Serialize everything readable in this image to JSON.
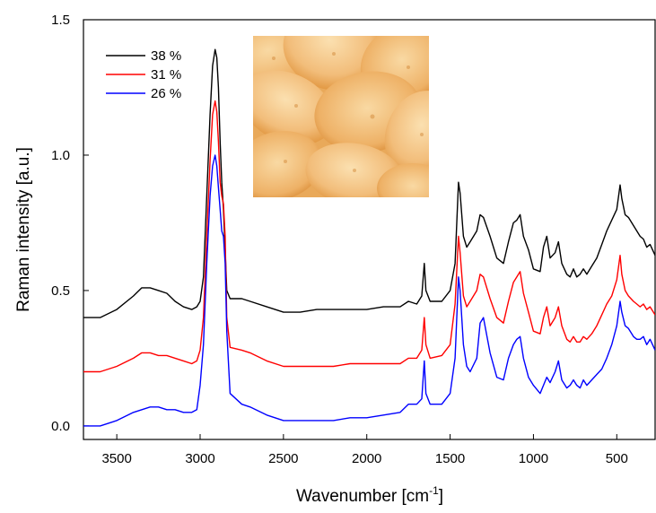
{
  "chart_data": {
    "type": "line",
    "xlabel": "Wavenumber [cm",
    "xlabel_superscript": "-1",
    "xlabel_suffix": "]",
    "ylabel": "Raman intensity [a.u.]",
    "xlim": [
      3700,
      270
    ],
    "x_reversed": true,
    "ylim": [
      -0.05,
      1.5
    ],
    "xticks": [
      3500,
      3000,
      2500,
      2000,
      1500,
      1000,
      500
    ],
    "xtick_labels": [
      "3500",
      "3000",
      "2500",
      "2000",
      "1500",
      "1000",
      "500"
    ],
    "yticks": [
      0.0,
      0.5,
      1.0,
      1.5
    ],
    "ytick_labels": [
      "0.0",
      "0.5",
      "1.0",
      "1.5"
    ],
    "grid": false,
    "legend_position": "top-left",
    "inset_image": "potato-chips-photo",
    "series": [
      {
        "name": "38 %",
        "color": "#000000",
        "points": [
          [
            3700,
            0.4
          ],
          [
            3600,
            0.4
          ],
          [
            3500,
            0.43
          ],
          [
            3400,
            0.48
          ],
          [
            3350,
            0.51
          ],
          [
            3300,
            0.51
          ],
          [
            3250,
            0.5
          ],
          [
            3200,
            0.49
          ],
          [
            3150,
            0.46
          ],
          [
            3100,
            0.44
          ],
          [
            3050,
            0.43
          ],
          [
            3020,
            0.44
          ],
          [
            3000,
            0.46
          ],
          [
            2980,
            0.55
          ],
          [
            2960,
            0.85
          ],
          [
            2940,
            1.15
          ],
          [
            2925,
            1.33
          ],
          [
            2910,
            1.39
          ],
          [
            2900,
            1.36
          ],
          [
            2890,
            1.25
          ],
          [
            2880,
            1.05
          ],
          [
            2870,
            0.9
          ],
          [
            2860,
            0.8
          ],
          [
            2850,
            0.65
          ],
          [
            2840,
            0.5
          ],
          [
            2820,
            0.47
          ],
          [
            2750,
            0.47
          ],
          [
            2700,
            0.46
          ],
          [
            2600,
            0.44
          ],
          [
            2500,
            0.42
          ],
          [
            2400,
            0.42
          ],
          [
            2300,
            0.43
          ],
          [
            2200,
            0.43
          ],
          [
            2100,
            0.43
          ],
          [
            2000,
            0.43
          ],
          [
            1900,
            0.44
          ],
          [
            1800,
            0.44
          ],
          [
            1750,
            0.46
          ],
          [
            1700,
            0.45
          ],
          [
            1670,
            0.48
          ],
          [
            1655,
            0.6
          ],
          [
            1645,
            0.5
          ],
          [
            1620,
            0.46
          ],
          [
            1550,
            0.46
          ],
          [
            1500,
            0.5
          ],
          [
            1470,
            0.6
          ],
          [
            1450,
            0.9
          ],
          [
            1440,
            0.86
          ],
          [
            1420,
            0.7
          ],
          [
            1400,
            0.66
          ],
          [
            1380,
            0.68
          ],
          [
            1340,
            0.72
          ],
          [
            1320,
            0.78
          ],
          [
            1300,
            0.77
          ],
          [
            1260,
            0.7
          ],
          [
            1220,
            0.62
          ],
          [
            1180,
            0.6
          ],
          [
            1150,
            0.68
          ],
          [
            1120,
            0.75
          ],
          [
            1100,
            0.76
          ],
          [
            1080,
            0.78
          ],
          [
            1060,
            0.7
          ],
          [
            1030,
            0.65
          ],
          [
            1000,
            0.58
          ],
          [
            960,
            0.57
          ],
          [
            940,
            0.66
          ],
          [
            920,
            0.7
          ],
          [
            900,
            0.62
          ],
          [
            870,
            0.64
          ],
          [
            850,
            0.68
          ],
          [
            830,
            0.6
          ],
          [
            800,
            0.56
          ],
          [
            780,
            0.55
          ],
          [
            760,
            0.58
          ],
          [
            740,
            0.55
          ],
          [
            720,
            0.56
          ],
          [
            700,
            0.58
          ],
          [
            680,
            0.56
          ],
          [
            650,
            0.59
          ],
          [
            620,
            0.62
          ],
          [
            590,
            0.67
          ],
          [
            560,
            0.72
          ],
          [
            530,
            0.76
          ],
          [
            500,
            0.8
          ],
          [
            480,
            0.89
          ],
          [
            470,
            0.84
          ],
          [
            450,
            0.78
          ],
          [
            430,
            0.77
          ],
          [
            400,
            0.74
          ],
          [
            380,
            0.72
          ],
          [
            360,
            0.7
          ],
          [
            340,
            0.69
          ],
          [
            320,
            0.66
          ],
          [
            300,
            0.67
          ],
          [
            270,
            0.63
          ]
        ]
      },
      {
        "name": "31 %",
        "color": "#ff0000",
        "points": [
          [
            3700,
            0.2
          ],
          [
            3600,
            0.2
          ],
          [
            3500,
            0.22
          ],
          [
            3400,
            0.25
          ],
          [
            3350,
            0.27
          ],
          [
            3300,
            0.27
          ],
          [
            3250,
            0.26
          ],
          [
            3200,
            0.26
          ],
          [
            3150,
            0.25
          ],
          [
            3100,
            0.24
          ],
          [
            3050,
            0.23
          ],
          [
            3020,
            0.24
          ],
          [
            3000,
            0.28
          ],
          [
            2980,
            0.4
          ],
          [
            2960,
            0.7
          ],
          [
            2940,
            0.98
          ],
          [
            2925,
            1.15
          ],
          [
            2910,
            1.2
          ],
          [
            2900,
            1.16
          ],
          [
            2890,
            1.05
          ],
          [
            2880,
            0.9
          ],
          [
            2870,
            0.85
          ],
          [
            2860,
            0.82
          ],
          [
            2850,
            0.7
          ],
          [
            2840,
            0.4
          ],
          [
            2820,
            0.29
          ],
          [
            2750,
            0.28
          ],
          [
            2700,
            0.27
          ],
          [
            2600,
            0.24
          ],
          [
            2500,
            0.22
          ],
          [
            2400,
            0.22
          ],
          [
            2300,
            0.22
          ],
          [
            2200,
            0.22
          ],
          [
            2100,
            0.23
          ],
          [
            2000,
            0.23
          ],
          [
            1900,
            0.23
          ],
          [
            1800,
            0.23
          ],
          [
            1750,
            0.25
          ],
          [
            1700,
            0.25
          ],
          [
            1670,
            0.28
          ],
          [
            1655,
            0.4
          ],
          [
            1645,
            0.3
          ],
          [
            1620,
            0.25
          ],
          [
            1550,
            0.26
          ],
          [
            1500,
            0.3
          ],
          [
            1470,
            0.45
          ],
          [
            1450,
            0.7
          ],
          [
            1440,
            0.64
          ],
          [
            1420,
            0.48
          ],
          [
            1400,
            0.44
          ],
          [
            1380,
            0.46
          ],
          [
            1340,
            0.5
          ],
          [
            1320,
            0.56
          ],
          [
            1300,
            0.55
          ],
          [
            1260,
            0.47
          ],
          [
            1220,
            0.4
          ],
          [
            1180,
            0.38
          ],
          [
            1150,
            0.46
          ],
          [
            1120,
            0.53
          ],
          [
            1100,
            0.55
          ],
          [
            1080,
            0.57
          ],
          [
            1060,
            0.49
          ],
          [
            1030,
            0.42
          ],
          [
            1000,
            0.35
          ],
          [
            960,
            0.34
          ],
          [
            940,
            0.4
          ],
          [
            920,
            0.44
          ],
          [
            900,
            0.37
          ],
          [
            870,
            0.4
          ],
          [
            850,
            0.44
          ],
          [
            830,
            0.37
          ],
          [
            800,
            0.32
          ],
          [
            780,
            0.31
          ],
          [
            760,
            0.33
          ],
          [
            740,
            0.31
          ],
          [
            720,
            0.31
          ],
          [
            700,
            0.33
          ],
          [
            680,
            0.32
          ],
          [
            650,
            0.34
          ],
          [
            620,
            0.37
          ],
          [
            590,
            0.41
          ],
          [
            560,
            0.45
          ],
          [
            530,
            0.48
          ],
          [
            500,
            0.54
          ],
          [
            480,
            0.63
          ],
          [
            470,
            0.56
          ],
          [
            450,
            0.5
          ],
          [
            430,
            0.48
          ],
          [
            400,
            0.46
          ],
          [
            380,
            0.45
          ],
          [
            360,
            0.44
          ],
          [
            340,
            0.45
          ],
          [
            320,
            0.43
          ],
          [
            300,
            0.44
          ],
          [
            270,
            0.41
          ]
        ]
      },
      {
        "name": "26 %",
        "color": "#0000ff",
        "points": [
          [
            3700,
            0.0
          ],
          [
            3600,
            0.0
          ],
          [
            3500,
            0.02
          ],
          [
            3400,
            0.05
          ],
          [
            3350,
            0.06
          ],
          [
            3300,
            0.07
          ],
          [
            3250,
            0.07
          ],
          [
            3200,
            0.06
          ],
          [
            3150,
            0.06
          ],
          [
            3100,
            0.05
          ],
          [
            3050,
            0.05
          ],
          [
            3020,
            0.06
          ],
          [
            3000,
            0.15
          ],
          [
            2980,
            0.3
          ],
          [
            2960,
            0.6
          ],
          [
            2940,
            0.85
          ],
          [
            2925,
            0.96
          ],
          [
            2910,
            1.0
          ],
          [
            2900,
            0.96
          ],
          [
            2890,
            0.88
          ],
          [
            2880,
            0.8
          ],
          [
            2870,
            0.72
          ],
          [
            2860,
            0.7
          ],
          [
            2850,
            0.6
          ],
          [
            2840,
            0.35
          ],
          [
            2820,
            0.12
          ],
          [
            2750,
            0.08
          ],
          [
            2700,
            0.07
          ],
          [
            2600,
            0.04
          ],
          [
            2500,
            0.02
          ],
          [
            2400,
            0.02
          ],
          [
            2300,
            0.02
          ],
          [
            2200,
            0.02
          ],
          [
            2100,
            0.03
          ],
          [
            2000,
            0.03
          ],
          [
            1900,
            0.04
          ],
          [
            1800,
            0.05
          ],
          [
            1750,
            0.08
          ],
          [
            1700,
            0.08
          ],
          [
            1670,
            0.1
          ],
          [
            1655,
            0.24
          ],
          [
            1645,
            0.12
          ],
          [
            1620,
            0.08
          ],
          [
            1550,
            0.08
          ],
          [
            1500,
            0.12
          ],
          [
            1470,
            0.25
          ],
          [
            1450,
            0.55
          ],
          [
            1440,
            0.5
          ],
          [
            1420,
            0.3
          ],
          [
            1400,
            0.22
          ],
          [
            1380,
            0.2
          ],
          [
            1340,
            0.25
          ],
          [
            1320,
            0.38
          ],
          [
            1300,
            0.4
          ],
          [
            1260,
            0.27
          ],
          [
            1220,
            0.18
          ],
          [
            1180,
            0.17
          ],
          [
            1150,
            0.25
          ],
          [
            1120,
            0.3
          ],
          [
            1100,
            0.32
          ],
          [
            1080,
            0.33
          ],
          [
            1060,
            0.25
          ],
          [
            1030,
            0.18
          ],
          [
            1000,
            0.15
          ],
          [
            960,
            0.12
          ],
          [
            940,
            0.15
          ],
          [
            920,
            0.18
          ],
          [
            900,
            0.16
          ],
          [
            870,
            0.2
          ],
          [
            850,
            0.24
          ],
          [
            830,
            0.17
          ],
          [
            800,
            0.14
          ],
          [
            780,
            0.15
          ],
          [
            760,
            0.17
          ],
          [
            740,
            0.15
          ],
          [
            720,
            0.14
          ],
          [
            700,
            0.17
          ],
          [
            680,
            0.15
          ],
          [
            650,
            0.17
          ],
          [
            620,
            0.19
          ],
          [
            590,
            0.21
          ],
          [
            560,
            0.25
          ],
          [
            530,
            0.3
          ],
          [
            500,
            0.37
          ],
          [
            480,
            0.46
          ],
          [
            470,
            0.42
          ],
          [
            450,
            0.37
          ],
          [
            430,
            0.36
          ],
          [
            400,
            0.33
          ],
          [
            380,
            0.32
          ],
          [
            360,
            0.32
          ],
          [
            340,
            0.33
          ],
          [
            320,
            0.3
          ],
          [
            300,
            0.32
          ],
          [
            270,
            0.28
          ]
        ]
      }
    ]
  }
}
